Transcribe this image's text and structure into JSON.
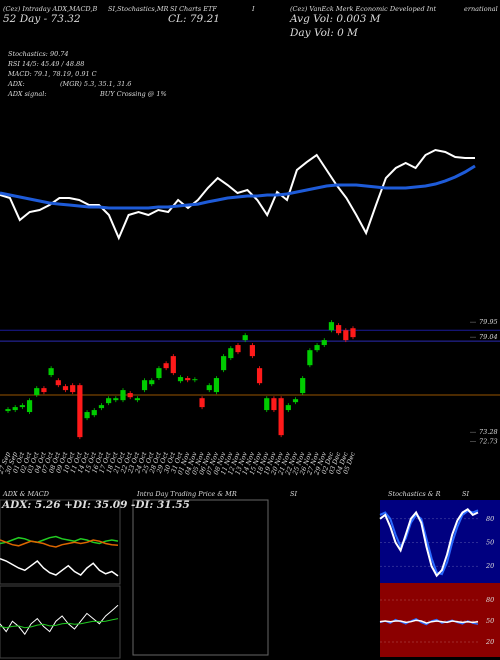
{
  "header": {
    "line1": [
      "(Cez) Intraday ADX,MACD,B",
      "SI,Stochastics,MR",
      "SI Charts ETF",
      "I",
      "(Cez) VanEck Merk Economic Developed Int",
      "ernational"
    ],
    "line2": [
      "52 Day - 73.32",
      "CL: 79.21",
      "Avg Vol: 0.003 M"
    ],
    "line3": "Day Vol: 0   M",
    "stats": [
      "Stochastics: 90.74",
      "RSI 14/5: 45.49 / 48.88",
      "MACD: 79.1, 78.19, 0.91 C",
      "ADX:",
      "(MGR) 5.3, 35.1, 31.6",
      "ADX  signal:",
      "BUY Crossing @ 1%"
    ]
  },
  "panels": {
    "adx_macd": "ADX  & MACD",
    "intraday": [
      "Intra Day Trading Price & MR",
      "SI"
    ],
    "stoch_rsi": [
      "Stochastics & R",
      "SI"
    ]
  },
  "chart_data": [
    {
      "type": "line",
      "ylim": [
        0,
        100
      ],
      "series": [
        {
          "color": "#ffffff",
          "values": [
            47.6,
            44.8,
            23.8,
            31.4,
            33.3,
            38.1,
            44.8,
            44.8,
            42.9,
            38.1,
            38.1,
            28.6,
            6.7,
            28.6,
            31.4,
            28.6,
            33.3,
            31.4,
            42.9,
            35.2,
            42.9,
            54.3,
            63.8,
            57.1,
            49.5,
            52.4,
            42.9,
            28.6,
            50.5,
            42.9,
            71.4,
            79.0,
            85.7,
            71.4,
            57.1,
            44.8,
            28.6,
            11.4,
            38.1,
            63.8,
            73.3,
            78.1,
            73.3,
            85.7,
            90.5,
            88.6,
            83.8,
            82.9,
            82.9
          ]
        },
        {
          "color": "#1e5bd8",
          "values": [
            49.5,
            47.6,
            45.7,
            43.8,
            41.9,
            40.0,
            39.0,
            38.1,
            37.1,
            36.2,
            36.2,
            35.2,
            35.2,
            35.2,
            35.2,
            35.2,
            36.2,
            36.2,
            37.1,
            38.1,
            39.0,
            41.0,
            42.9,
            44.8,
            45.7,
            46.7,
            46.7,
            47.6,
            47.6,
            48.6,
            50.5,
            52.4,
            54.3,
            56.2,
            57.1,
            57.1,
            57.1,
            56.2,
            55.2,
            54.3,
            54.3,
            54.3,
            55.2,
            56.2,
            58.1,
            61.0,
            64.8,
            69.5,
            75.2
          ]
        }
      ]
    },
    {
      "type": "candlestick",
      "ylim": [
        72.2,
        80.2
      ],
      "yticks": [
        72.73,
        73.28,
        79.04,
        79.95
      ],
      "up_color": "#00cc00",
      "down_color": "#ff1a1a",
      "levels": [
        {
          "value": 79.46,
          "color": "#1a1a99"
        },
        {
          "value": 78.8,
          "color": "#2a2ab0"
        },
        {
          "value": 75.53,
          "color": "#995500"
        }
      ],
      "categories": [
        "27 Sep",
        "30 Sep",
        "01 Oct",
        "02 Oct",
        "03 Oct",
        "04 Oct",
        "07 Oct",
        "08 Oct",
        "09 Oct",
        "10 Oct",
        "11 Oct",
        "14 Oct",
        "15 Oct",
        "16 Oct",
        "17 Oct",
        "18 Oct",
        "21 Oct",
        "22 Oct",
        "23 Oct",
        "24 Oct",
        "25 Oct",
        "28 Oct",
        "29 Oct",
        "30 Oct",
        "31 Oct",
        "01 Nov",
        "04 Nov",
        "05 Nov",
        "06 Nov",
        "07 Nov",
        "08 Nov",
        "11 Nov",
        "12 Nov",
        "13 Nov",
        "14 Nov",
        "15 Nov",
        "18 Nov",
        "19 Nov",
        "20 Nov",
        "21 Nov",
        "22 Nov",
        "25 Nov",
        "26 Nov",
        "27 Nov",
        "29 Nov",
        "02 Dec",
        "03 Dec",
        "04 Dec",
        "05 Dec"
      ],
      "open": [
        74.56,
        74.62,
        74.8,
        74.5,
        75.53,
        75.95,
        76.74,
        76.43,
        76.07,
        76.13,
        76.13,
        74.13,
        74.31,
        74.74,
        75.04,
        75.22,
        75.22,
        75.65,
        75.22,
        75.83,
        76.19,
        76.56,
        77.46,
        77.89,
        76.37,
        76.56,
        76.43,
        75.34,
        75.83,
        75.71,
        77.04,
        77.77,
        78.56,
        78.86,
        78.56,
        77.16,
        74.62,
        75.34,
        75.34,
        74.62,
        75.1,
        75.65,
        77.34,
        78.25,
        78.56,
        79.46,
        79.77,
        79.46,
        79.58
      ],
      "high": [
        74.8,
        74.92,
        75.04,
        75.34,
        76.07,
        76.07,
        77.28,
        76.55,
        76.19,
        76.25,
        76.25,
        74.62,
        74.74,
        75.04,
        75.46,
        75.46,
        75.95,
        75.77,
        75.46,
        76.55,
        76.55,
        77.28,
        77.58,
        78.01,
        76.74,
        76.68,
        76.61,
        75.46,
        76.25,
        76.68,
        78.01,
        78.49,
        78.68,
        79.28,
        78.68,
        77.28,
        75.46,
        75.46,
        75.46,
        75.04,
        75.4,
        76.68,
        78.37,
        78.68,
        78.98,
        80.07,
        79.89,
        79.58,
        79.7
      ],
      "low": [
        74.44,
        74.5,
        74.68,
        74.38,
        75.41,
        75.59,
        76.62,
        76.01,
        75.71,
        75.59,
        72.86,
        74.01,
        74.19,
        74.62,
        74.92,
        75.1,
        75.1,
        75.28,
        75.1,
        75.71,
        76.07,
        76.44,
        77.04,
        76.74,
        76.25,
        76.31,
        76.31,
        74.68,
        75.71,
        75.59,
        76.92,
        77.65,
        78.01,
        78.74,
        77.77,
        76.13,
        74.5,
        74.5,
        72.98,
        74.5,
        74.98,
        75.53,
        77.22,
        78.13,
        78.44,
        79.34,
        79.16,
        78.74,
        78.92
      ],
      "close": [
        74.68,
        74.8,
        74.92,
        75.22,
        75.95,
        75.71,
        77.16,
        76.13,
        75.83,
        75.71,
        72.98,
        74.5,
        74.62,
        74.92,
        75.34,
        75.34,
        75.83,
        75.4,
        75.34,
        76.43,
        76.43,
        77.16,
        77.16,
        76.86,
        76.62,
        76.43,
        76.49,
        74.8,
        76.13,
        76.56,
        77.89,
        78.37,
        78.13,
        79.16,
        77.89,
        76.25,
        75.34,
        74.62,
        73.1,
        74.92,
        75.28,
        76.56,
        78.25,
        78.56,
        78.86,
        79.95,
        79.28,
        78.86,
        79.04
      ]
    },
    {
      "type": "line",
      "title": "ADX: 5.26 +DI: 35.09 -DI: 31.55",
      "ylim": [
        0,
        60
      ],
      "series": [
        {
          "color": "#22cc22",
          "values": [
            33,
            34,
            36,
            38,
            37,
            35,
            34,
            36,
            38,
            39,
            37,
            36,
            35,
            37,
            36,
            34,
            33,
            35,
            36,
            35.09
          ]
        },
        {
          "color": "#dd6600",
          "values": [
            36,
            34,
            32,
            31,
            33,
            35,
            34,
            33,
            31,
            30,
            32,
            33,
            34,
            33,
            34,
            36,
            35,
            33,
            32,
            31.55
          ]
        },
        {
          "color": "#ffffff",
          "values": [
            20,
            18,
            15,
            12,
            10,
            14,
            18,
            12,
            8,
            6,
            10,
            14,
            9,
            6,
            12,
            16,
            10,
            7,
            9,
            5.26
          ]
        }
      ]
    },
    {
      "type": "line",
      "ylim": [
        -1,
        1.5
      ],
      "series": [
        {
          "color": "#ffffff",
          "values": [
            0.2,
            -0.1,
            0.3,
            0.1,
            -0.2,
            0.2,
            0.4,
            0.1,
            -0.1,
            0.3,
            0.5,
            0.2,
            0.0,
            0.3,
            0.6,
            0.4,
            0.2,
            0.5,
            0.7,
            0.91
          ]
        },
        {
          "color": "#22cc22",
          "values": [
            0.1,
            0.05,
            0.1,
            0.12,
            0.05,
            0.08,
            0.15,
            0.18,
            0.12,
            0.14,
            0.2,
            0.22,
            0.18,
            0.2,
            0.25,
            0.3,
            0.28,
            0.3,
            0.35,
            0.4
          ]
        }
      ]
    },
    {
      "type": "line",
      "ylim": [
        0,
        100
      ],
      "yticks": [
        20,
        50,
        80
      ],
      "background": "#000080",
      "series": [
        {
          "color": "#2a6aff",
          "values": [
            85,
            88,
            80,
            60,
            45,
            55,
            75,
            85,
            80,
            55,
            30,
            12,
            10,
            25,
            50,
            70,
            85,
            90,
            88,
            90.74
          ]
        },
        {
          "color": "#ffffff",
          "values": [
            80,
            85,
            70,
            50,
            40,
            60,
            80,
            88,
            75,
            45,
            20,
            8,
            15,
            35,
            60,
            78,
            88,
            92,
            85,
            88
          ]
        }
      ]
    },
    {
      "type": "line",
      "ylim": [
        0,
        100
      ],
      "yticks": [
        20,
        50,
        80
      ],
      "background": "#8b0000",
      "series": [
        {
          "color": "#2a6aff",
          "values": [
            48,
            50,
            47,
            52,
            49,
            46,
            50,
            53,
            48,
            45,
            50,
            52,
            47,
            49,
            51,
            48,
            46,
            50,
            47,
            45.49
          ]
        },
        {
          "color": "#ffffff",
          "values": [
            49,
            50,
            49,
            50,
            50,
            48,
            49,
            51,
            50,
            47,
            49,
            50,
            49,
            48,
            50,
            49,
            48,
            49,
            48,
            48.88
          ]
        }
      ]
    }
  ]
}
